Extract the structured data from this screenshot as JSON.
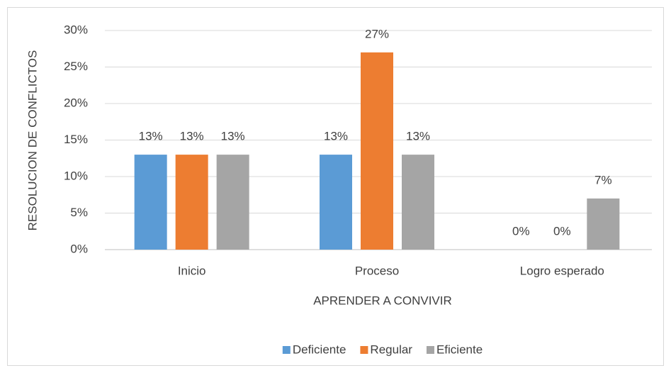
{
  "chart_data": {
    "type": "bar",
    "xlabel": "APRENDER A CONVIVIR",
    "ylabel": "RESOLUCION DE CONFLICTOS",
    "categories": [
      "Inicio",
      "Proceso",
      "Logro esperado"
    ],
    "series": [
      {
        "name": "Deficiente",
        "color": "#5b9bd5",
        "values": [
          13,
          13,
          0
        ],
        "value_labels": [
          "13%",
          "13%",
          "0%"
        ]
      },
      {
        "name": "Regular",
        "color": "#ed7d31",
        "values": [
          13,
          27,
          0
        ],
        "value_labels": [
          "13%",
          "27%",
          "0%"
        ]
      },
      {
        "name": "Eficiente",
        "color": "#a5a5a5",
        "values": [
          13,
          13,
          7
        ],
        "value_labels": [
          "13%",
          "13%",
          "7%"
        ]
      }
    ],
    "ylim": [
      0,
      30
    ],
    "yticks": [
      {
        "value": 0,
        "label": "0%"
      },
      {
        "value": 5,
        "label": "5%"
      },
      {
        "value": 10,
        "label": "10%"
      },
      {
        "value": 15,
        "label": "15%"
      },
      {
        "value": 20,
        "label": "20%"
      },
      {
        "value": 25,
        "label": "25%"
      },
      {
        "value": 30,
        "label": "30%"
      }
    ],
    "grid": true,
    "legend": "bottom"
  }
}
